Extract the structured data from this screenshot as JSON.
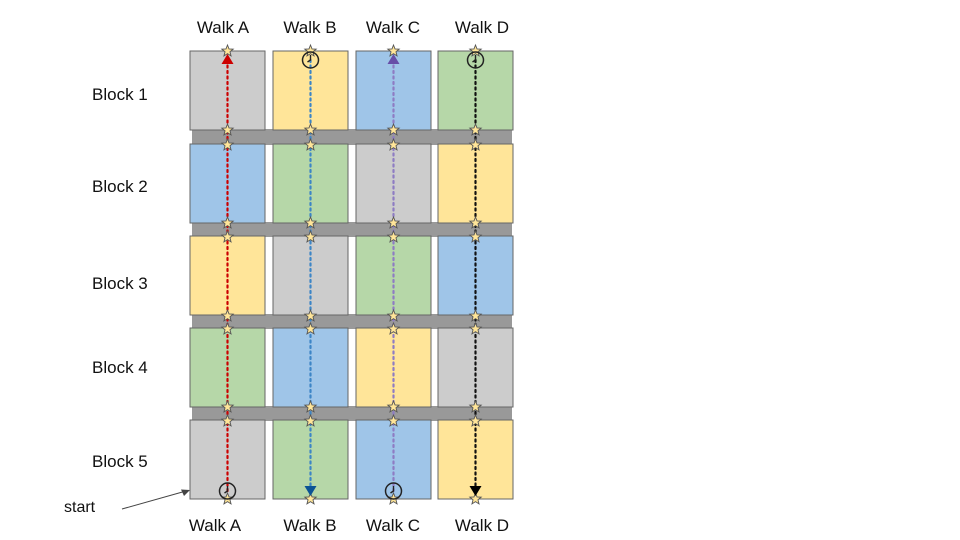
{
  "columns_top": [
    "Walk A",
    "Walk B",
    "Walk C",
    "Walk D"
  ],
  "columns_bottom": [
    "Walk A",
    "Walk B",
    "Walk C",
    "Walk D"
  ],
  "rows": [
    "Block 1",
    "Block 2",
    "Block 3",
    "Block 4",
    "Block 5"
  ],
  "start_label": "start",
  "colors": {
    "gray": "#cccccc",
    "yellow": "#ffe599",
    "blue": "#9fc5e8",
    "green": "#b6d7a8",
    "separator": "#999999",
    "cell_border": "#666666",
    "star_fill": "#ffe599",
    "star_stroke": "#555555"
  },
  "grid": [
    [
      "gray",
      "yellow",
      "blue",
      "green"
    ],
    [
      "blue",
      "green",
      "gray",
      "yellow"
    ],
    [
      "yellow",
      "gray",
      "green",
      "blue"
    ],
    [
      "green",
      "blue",
      "yellow",
      "gray"
    ],
    [
      "gray",
      "green",
      "blue",
      "yellow"
    ]
  ],
  "walks": [
    {
      "line_color": "#cc0000",
      "top_marker": "triangle-up",
      "top_marker_color": "#cc0000",
      "bottom_marker": "clock",
      "bottom_marker_color": ""
    },
    {
      "line_color": "#3d85c6",
      "top_marker": "clock",
      "top_marker_color": "",
      "bottom_marker": "triangle-down",
      "bottom_marker_color": "#0b5394"
    },
    {
      "line_color": "#8e7cc3",
      "top_marker": "triangle-up",
      "top_marker_color": "#674ea7",
      "bottom_marker": "clock",
      "bottom_marker_color": ""
    },
    {
      "line_color": "#111111",
      "top_marker": "clock",
      "top_marker_color": "",
      "bottom_marker": "triangle-down",
      "bottom_marker_color": "#000000"
    }
  ]
}
